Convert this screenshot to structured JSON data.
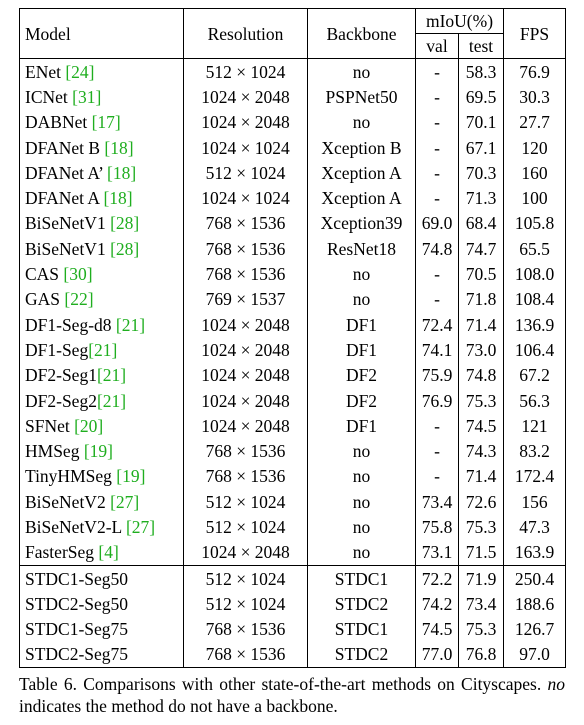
{
  "headers": {
    "model": "Model",
    "resolution": "Resolution",
    "backbone": "Backbone",
    "miou": "mIoU(%)",
    "val": "val",
    "test": "test",
    "fps": "FPS"
  },
  "rows": [
    {
      "model": "ENet ",
      "ref": "[24]",
      "res": "512 × 1024",
      "backbone": "no",
      "val": "-",
      "test": "58.3",
      "fps": "76.9"
    },
    {
      "model": "ICNet ",
      "ref": "[31]",
      "res": "1024 × 2048",
      "backbone": "PSPNet50",
      "val": "-",
      "test": "69.5",
      "fps": "30.3"
    },
    {
      "model": "DABNet ",
      "ref": "[17]",
      "res": "1024 × 2048",
      "backbone": "no",
      "val": "-",
      "test": "70.1",
      "fps": "27.7"
    },
    {
      "model": "DFANet B ",
      "ref": "[18]",
      "res": "1024 × 1024",
      "backbone": "Xception B",
      "val": "-",
      "test": "67.1",
      "fps": "120"
    },
    {
      "model": "DFANet A’ ",
      "ref": "[18]",
      "res": "512 × 1024",
      "backbone": "Xception A",
      "val": "-",
      "test": "70.3",
      "fps": "160"
    },
    {
      "model": "DFANet A ",
      "ref": "[18]",
      "res": "1024 × 1024",
      "backbone": "Xception A",
      "val": "-",
      "test": "71.3",
      "fps": "100"
    },
    {
      "model": "BiSeNetV1 ",
      "ref": "[28]",
      "res": "768 × 1536",
      "backbone": "Xception39",
      "val": "69.0",
      "test": "68.4",
      "fps": "105.8"
    },
    {
      "model": "BiSeNetV1 ",
      "ref": "[28]",
      "res": "768 × 1536",
      "backbone": "ResNet18",
      "val": "74.8",
      "test": "74.7",
      "fps": "65.5"
    },
    {
      "model": "CAS ",
      "ref": "[30]",
      "res": "768 × 1536",
      "backbone": "no",
      "val": "-",
      "test": "70.5",
      "fps": "108.0"
    },
    {
      "model": "GAS ",
      "ref": "[22]",
      "res": "769 × 1537",
      "backbone": "no",
      "val": "-",
      "test": "71.8",
      "fps": "108.4"
    },
    {
      "model": "DF1-Seg-d8 ",
      "ref": "[21]",
      "res": "1024 × 2048",
      "backbone": "DF1",
      "val": "72.4",
      "test": "71.4",
      "fps": "136.9"
    },
    {
      "model": "DF1-Seg",
      "ref": "[21]",
      "res": "1024 × 2048",
      "backbone": "DF1",
      "val": "74.1",
      "test": "73.0",
      "fps": "106.4"
    },
    {
      "model": "DF2-Seg1",
      "ref": "[21]",
      "res": "1024 × 2048",
      "backbone": "DF2",
      "val": "75.9",
      "test": "74.8",
      "fps": "67.2"
    },
    {
      "model": "DF2-Seg2",
      "ref": "[21]",
      "res": "1024 × 2048",
      "backbone": "DF2",
      "val": "76.9",
      "test": "75.3",
      "fps": "56.3"
    },
    {
      "model": "SFNet ",
      "ref": "[20]",
      "res": "1024 × 2048",
      "backbone": "DF1",
      "val": "-",
      "test": "74.5",
      "fps": "121"
    },
    {
      "model": "HMSeg ",
      "ref": "[19]",
      "res": "768 × 1536",
      "backbone": "no",
      "val": "-",
      "test": "74.3",
      "fps": "83.2"
    },
    {
      "model": "TinyHMSeg ",
      "ref": "[19]",
      "res": "768 × 1536",
      "backbone": "no",
      "val": "-",
      "test": "71.4",
      "fps": "172.4"
    },
    {
      "model": "BiSeNetV2 ",
      "ref": "[27]",
      "res": "512 × 1024",
      "backbone": "no",
      "val": "73.4",
      "test": "72.6",
      "fps": "156"
    },
    {
      "model": "BiSeNetV2-L ",
      "ref": "[27]",
      "res": "512 × 1024",
      "backbone": "no",
      "val": "75.8",
      "test": "75.3",
      "fps": "47.3"
    },
    {
      "model": "FasterSeg ",
      "ref": "[4]",
      "res": "1024 × 2048",
      "backbone": "no",
      "val": "73.1",
      "test": "71.5",
      "fps": "163.9"
    }
  ],
  "ours": [
    {
      "model": "STDC1-Seg50",
      "res": "512 × 1024",
      "backbone": "STDC1",
      "val": "72.2",
      "test": "71.9",
      "fps": "250.4",
      "bold": [
        "fps"
      ]
    },
    {
      "model": "STDC2-Seg50",
      "res": "512 × 1024",
      "backbone": "STDC2",
      "val": "74.2",
      "test": "73.4",
      "fps": "188.6",
      "bold": []
    },
    {
      "model": "STDC1-Seg75",
      "res": "768 × 1536",
      "backbone": "STDC1",
      "val": "74.5",
      "test": "75.3",
      "fps": "126.7",
      "bold": []
    },
    {
      "model": "STDC2-Seg75",
      "res": "768 × 1536",
      "backbone": "STDC2",
      "val": "77.0",
      "test": "76.8",
      "fps": "97.0",
      "bold": [
        "val",
        "test"
      ]
    }
  ],
  "caption": {
    "lead": "Table 6. Comparisons with other state-of-the-art methods on Cityscapes. ",
    "emph": "no",
    "tail": " indicates the method do not have a backbone."
  },
  "colors": {
    "citation": "#1fae1f",
    "text": "#000000"
  }
}
